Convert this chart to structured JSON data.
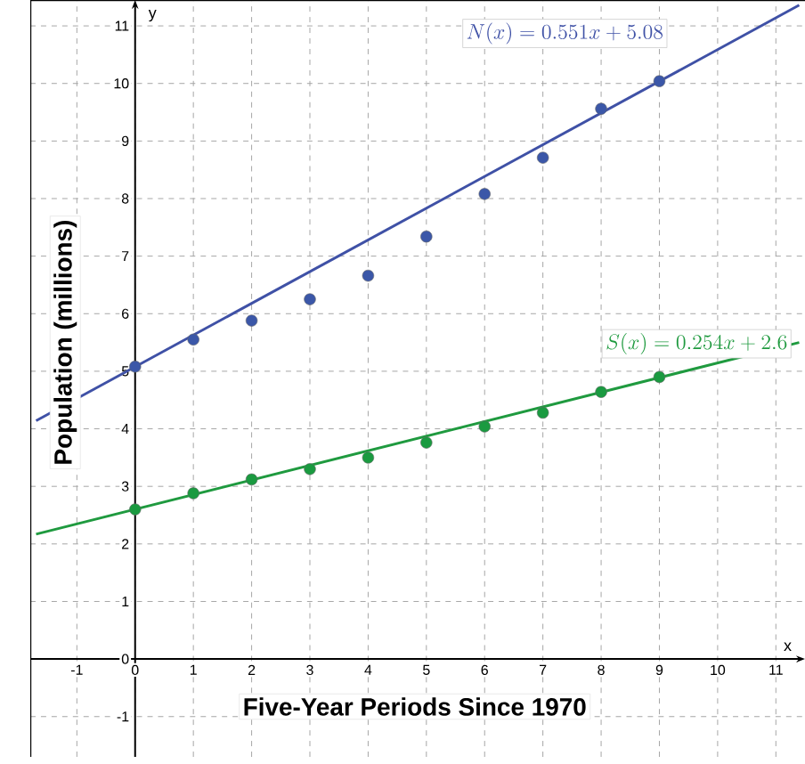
{
  "chart_data": {
    "type": "scatter",
    "xlabel": "Five-Year Periods Since 1970",
    "ylabel": "Population (millions)",
    "annotations": [
      "x",
      "y"
    ],
    "xlim": [
      -1.8,
      11.5
    ],
    "ylim": [
      -1.7,
      11.45
    ],
    "xticks": [
      -1,
      0,
      1,
      2,
      3,
      4,
      5,
      6,
      7,
      8,
      9,
      10,
      11
    ],
    "yticks": [
      -1,
      0,
      1,
      2,
      3,
      4,
      5,
      6,
      7,
      8,
      9,
      10,
      11
    ],
    "grid": true,
    "line_style": "solid",
    "series": [
      {
        "marker": "circle",
        "color": "#3b57a8",
        "x": [
          0,
          1,
          2,
          3,
          4,
          5,
          6,
          7,
          8,
          9
        ],
        "values": [
          5.08,
          5.55,
          5.88,
          6.25,
          6.66,
          7.34,
          8.08,
          8.71,
          9.56,
          10.04
        ]
      },
      {
        "type": "line",
        "marker": "none",
        "name": "N(x) = 0.551x + 5.08",
        "color": "#3f51a6",
        "x": [
          -1.7,
          11.4
        ],
        "values": [
          4.14,
          11.36
        ]
      },
      {
        "marker": "circle",
        "color": "#1a9a40",
        "x": [
          0,
          1,
          2,
          3,
          4,
          5,
          6,
          7,
          8,
          9
        ],
        "values": [
          2.6,
          2.88,
          3.12,
          3.3,
          3.5,
          3.76,
          4.04,
          4.28,
          4.64,
          4.9
        ]
      },
      {
        "type": "line",
        "marker": "none",
        "name": "S(x) = 0.254x + 2.6",
        "color": "#1f9a3f",
        "x": [
          -1.7,
          11.4
        ],
        "values": [
          2.17,
          5.5
        ]
      }
    ]
  }
}
